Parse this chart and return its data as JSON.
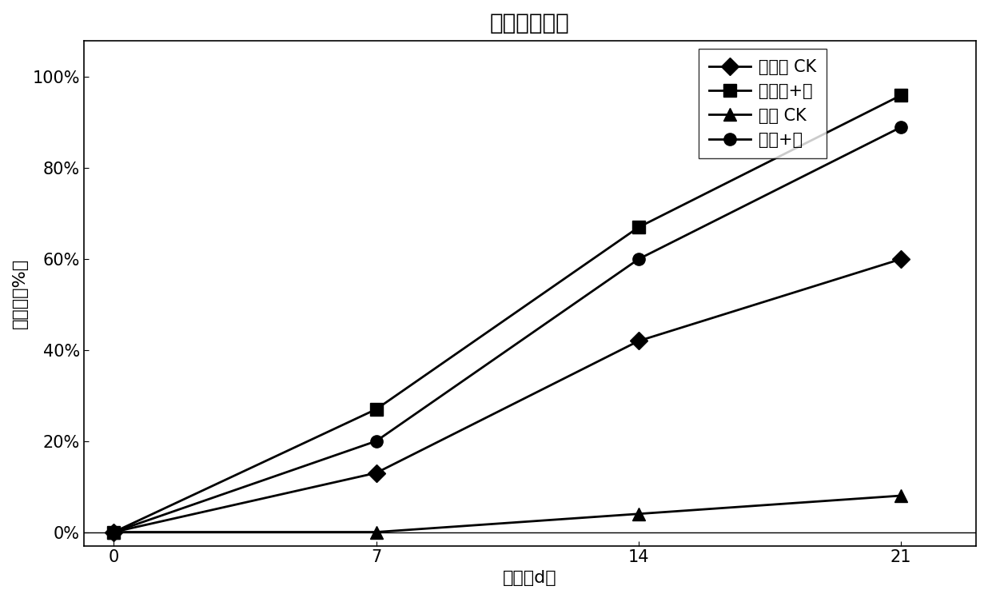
{
  "title": "土壤降解结果",
  "xlabel": "时间（d）",
  "ylabel": "降解率（%）",
  "x": [
    0,
    7,
    14,
    21
  ],
  "series": [
    {
      "label": "未灭菌 CK",
      "values": [
        0,
        13,
        42,
        60
      ],
      "marker": "D",
      "color": "#000000",
      "linestyle": "-"
    },
    {
      "label": "为灭菌+菌",
      "values": [
        0,
        27,
        67,
        96
      ],
      "marker": "s",
      "color": "#000000",
      "linestyle": "-"
    },
    {
      "label": "灭菌 CK",
      "values": [
        0,
        0,
        4,
        8
      ],
      "marker": "^",
      "color": "#000000",
      "linestyle": "-"
    },
    {
      "label": "灭菌+菌",
      "values": [
        0,
        20,
        60,
        89
      ],
      "marker": "o",
      "color": "#000000",
      "linestyle": "-"
    }
  ],
  "yticks": [
    0,
    20,
    40,
    60,
    80,
    100
  ],
  "ytick_labels": [
    "0%",
    "20%",
    "40%",
    "60%",
    "80%",
    "100%"
  ],
  "xticks": [
    0,
    7,
    14,
    21
  ],
  "xlim": [
    -0.8,
    23
  ],
  "ylim": [
    -3,
    108
  ],
  "background_color": "#ffffff",
  "title_fontsize": 20,
  "label_fontsize": 16,
  "tick_fontsize": 15,
  "legend_fontsize": 15,
  "linewidth": 2.0,
  "markersize": 11
}
